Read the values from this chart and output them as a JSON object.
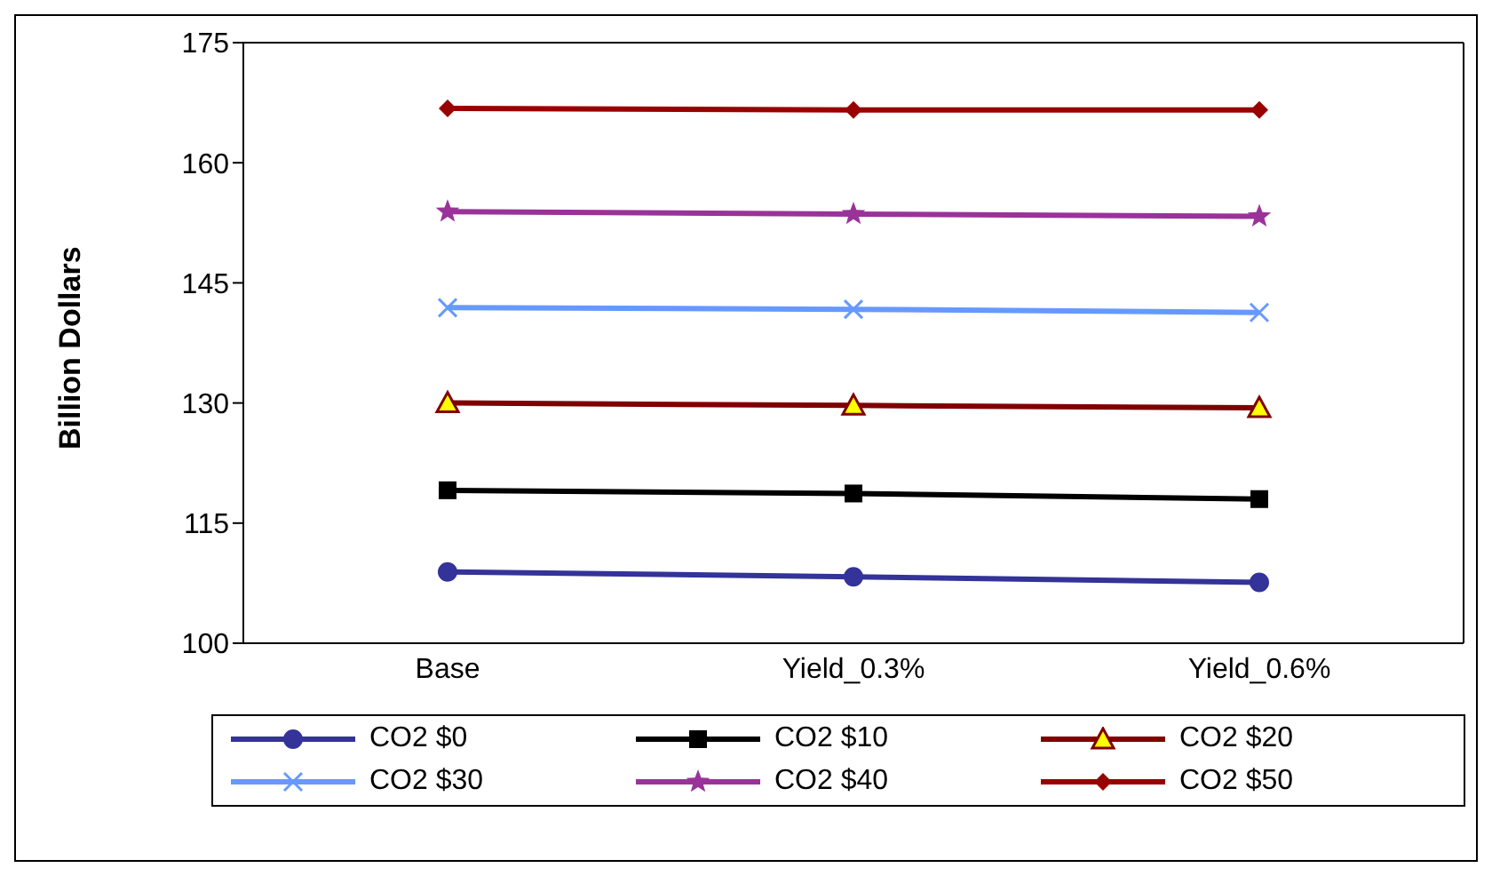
{
  "chart_data": {
    "type": "line",
    "ylabel": "Billion Dollars",
    "categories": [
      "Base",
      "Yield_0.3%",
      "Yield_0.6%"
    ],
    "ylim": [
      100,
      175
    ],
    "yticks": [
      100,
      115,
      130,
      145,
      160,
      175
    ],
    "legend": "bottom",
    "line_style": "solid",
    "series": [
      {
        "name": "CO2 $0",
        "color": "#333399",
        "marker": "circle",
        "values": [
          108.9,
          108.3,
          107.6
        ]
      },
      {
        "name": "CO2 $10",
        "color": "#000000",
        "marker": "square",
        "values": [
          119.1,
          118.7,
          118.0
        ]
      },
      {
        "name": "CO2 $20",
        "color": "#800000",
        "marker": "triangle",
        "values": [
          130.0,
          129.7,
          129.4
        ]
      },
      {
        "name": "CO2 $30",
        "color": "#6699ff",
        "marker": "cross",
        "values": [
          141.9,
          141.7,
          141.3
        ]
      },
      {
        "name": "CO2 $40",
        "color": "#993399",
        "marker": "star",
        "values": [
          153.9,
          153.6,
          153.3
        ]
      },
      {
        "name": "CO2 $50",
        "color": "#990000",
        "marker": "diamond",
        "values": [
          166.8,
          166.6,
          166.6
        ]
      }
    ]
  }
}
